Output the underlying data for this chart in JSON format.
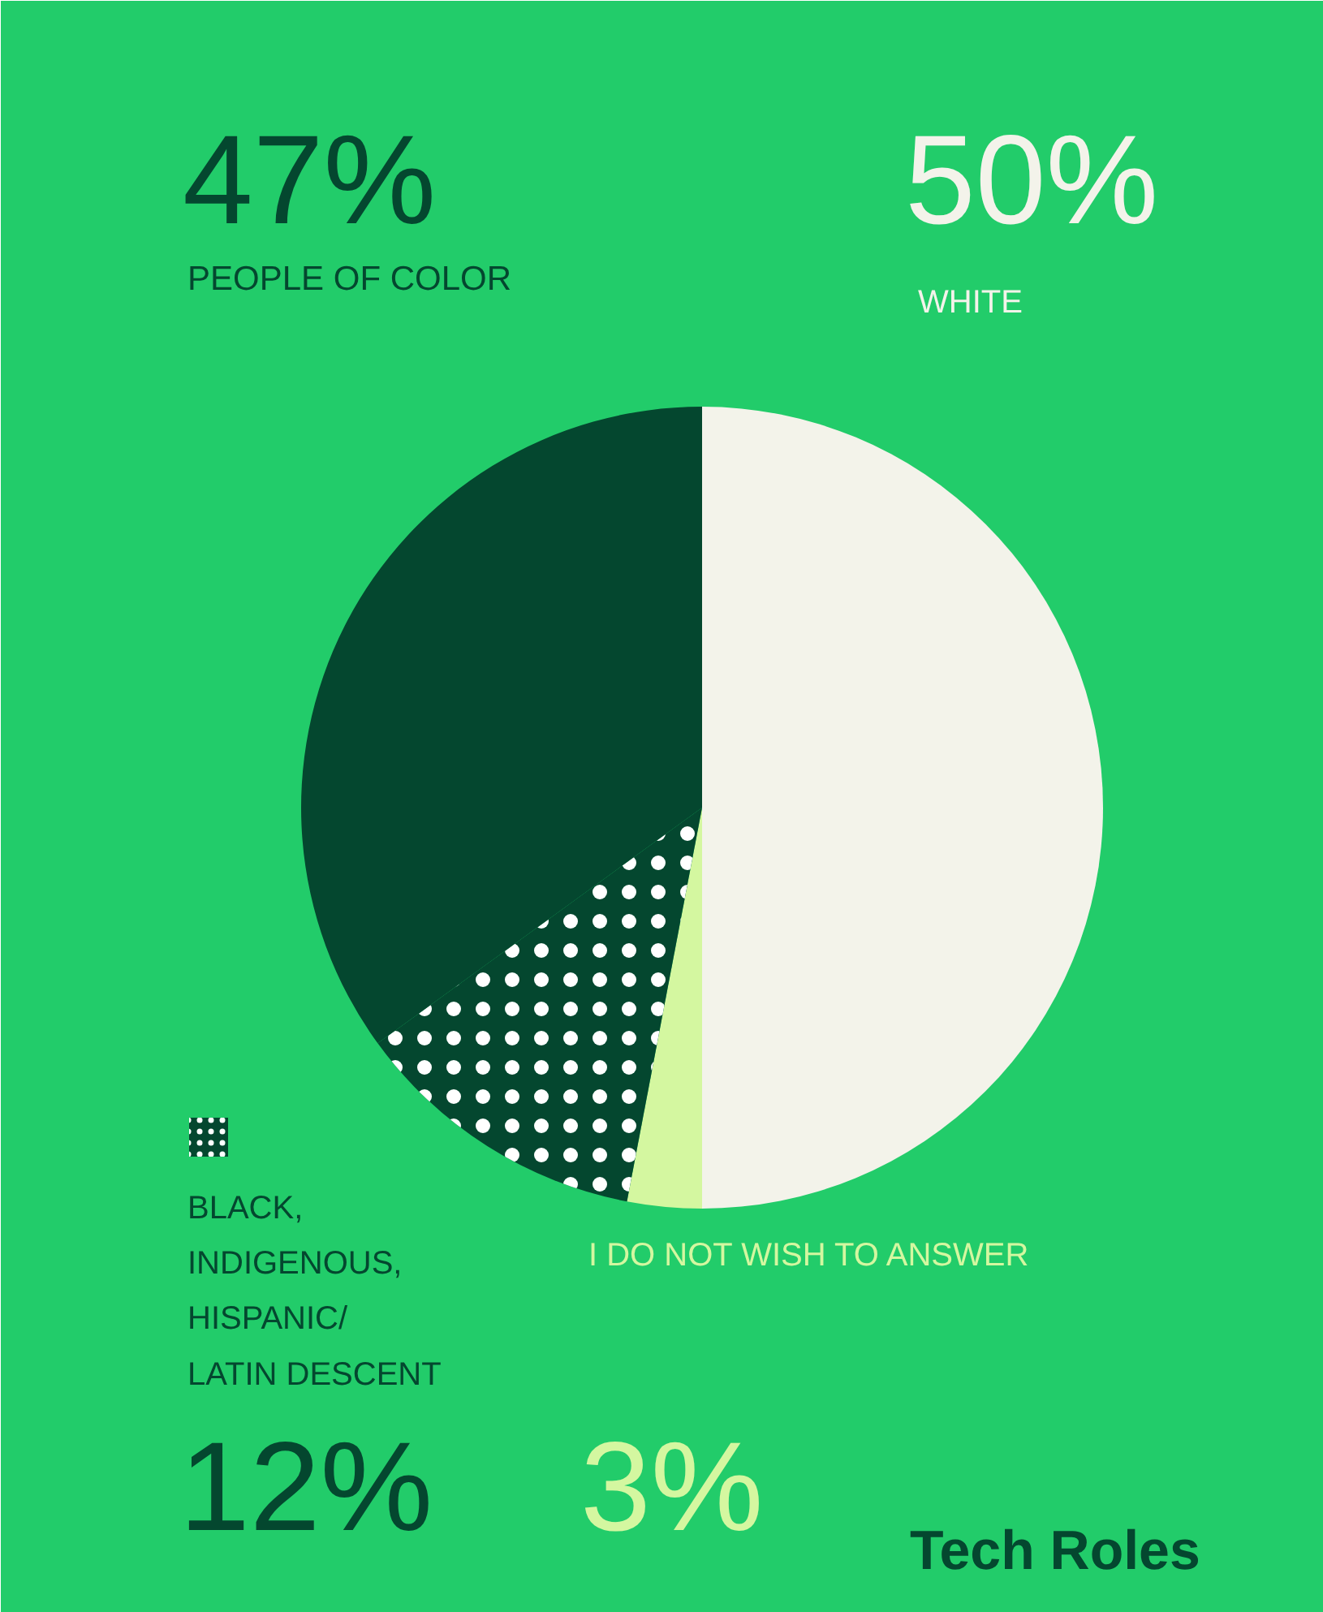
{
  "chart_data": {
    "type": "pie",
    "title": "Tech Roles",
    "categories": [
      "WHITE",
      "I DO NOT WISH TO ANSWER",
      "BLACK, INDIGENOUS, HISPANIC/ LATIN DESCENT",
      null
    ],
    "values": [
      50,
      3,
      12,
      35
    ],
    "colors": [
      "#f3f3ea",
      "#d4f7a0",
      "#04472f",
      "#04472f"
    ],
    "value_labels": [
      "50%",
      "3%",
      "12%",
      null
    ],
    "annotations": [
      "47%",
      "PEOPLE OF COLOR"
    ]
  }
}
